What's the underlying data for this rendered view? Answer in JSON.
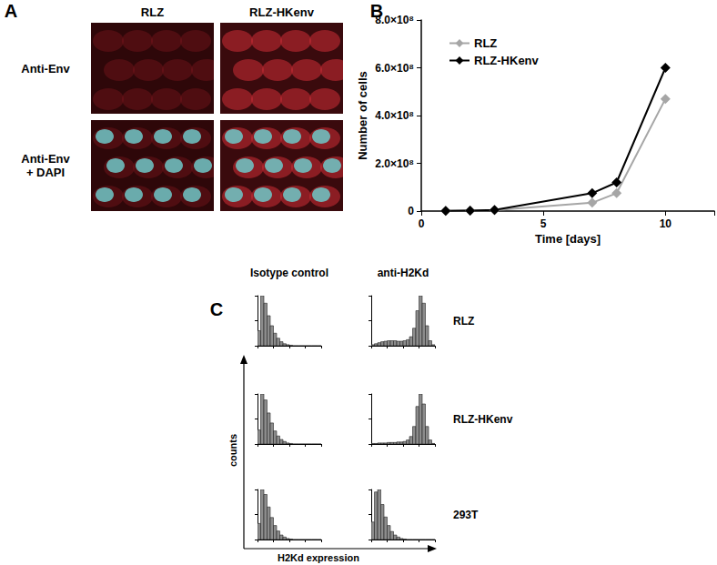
{
  "panel_labels": [
    "A",
    "B",
    "C"
  ],
  "image_panel": {
    "columns": [
      "RLZ",
      "RLZ-HKenv"
    ],
    "rows": [
      "Anti-Env",
      "Anti-Env\n+ DAPI"
    ]
  },
  "chart_data": [
    {
      "type": "line",
      "xlabel": "Time [days]",
      "ylabel": "Number of cells",
      "x": [
        1,
        2,
        3,
        7,
        8,
        10
      ],
      "series": [
        {
          "name": "RLZ",
          "color": "#a6a6a6",
          "marker": "diamond",
          "values": [
            1000000,
            2000000,
            4000000,
            35000000,
            75000000,
            470000000
          ]
        },
        {
          "name": "RLZ-HKenv",
          "color": "#000000",
          "marker": "diamond",
          "values": [
            1000000,
            2000000,
            5000000,
            75000000,
            120000000,
            600000000
          ]
        }
      ],
      "xlim": [
        0,
        12
      ],
      "xticks": [
        0,
        5,
        10
      ],
      "ylim": [
        0,
        800000000
      ],
      "yticks": [
        0,
        {
          "value": 200000000,
          "label": "2.0×10⁸"
        },
        {
          "value": 400000000,
          "label": "4.0×10⁸"
        },
        {
          "value": 600000000,
          "label": "6.0×10⁸"
        },
        {
          "value": 800000000,
          "label": "8.0×10⁸"
        }
      ],
      "grid": false,
      "legend": "upper left"
    },
    {
      "type": "histogram",
      "columns": [
        "Isotype control",
        "anti-H2Kd"
      ],
      "rows": [
        "RLZ",
        "RLZ-HKenv",
        "293T"
      ],
      "xlabel": "H2Kd expression",
      "ylabel": "counts",
      "bins": [
        0,
        0.2,
        0.4,
        0.6,
        0.8,
        1,
        1.2,
        1.4,
        1.6,
        1.8,
        2,
        2.2,
        2.4,
        2.6,
        2.8,
        3,
        3.2,
        3.4,
        3.6,
        3.8,
        4
      ],
      "xlim": [
        0,
        4
      ],
      "xticks": [
        0,
        1,
        2,
        3,
        4
      ],
      "ylim": [
        0,
        100
      ],
      "yticks": [
        0,
        50,
        100
      ],
      "tick_labels": false,
      "grid": false,
      "color": "#8c8c8c",
      "panels": [
        [
          [
            30,
            100,
            85,
            60,
            40,
            25,
            15,
            8,
            4,
            2,
            1,
            0,
            0,
            0,
            0,
            0,
            0,
            0,
            0,
            0
          ],
          [
            2,
            4,
            6,
            8,
            9,
            10,
            10,
            10,
            9,
            9,
            10,
            12,
            18,
            35,
            70,
            100,
            85,
            40,
            10,
            2
          ]
        ],
        [
          [
            28,
            100,
            88,
            62,
            42,
            26,
            16,
            9,
            5,
            2,
            1,
            0,
            0,
            0,
            0,
            0,
            0,
            0,
            0,
            0
          ],
          [
            1,
            1,
            2,
            2,
            2,
            3,
            3,
            3,
            4,
            4,
            5,
            8,
            15,
            35,
            75,
            100,
            80,
            35,
            8,
            1
          ]
        ],
        [
          [
            32,
            100,
            90,
            65,
            44,
            28,
            17,
            9,
            5,
            2,
            1,
            0,
            0,
            0,
            0,
            0,
            0,
            0,
            0,
            0
          ],
          [
            35,
            95,
            100,
            70,
            45,
            28,
            16,
            9,
            5,
            2,
            1,
            0,
            0,
            0,
            0,
            0,
            0,
            0,
            0,
            0
          ]
        ]
      ]
    }
  ]
}
